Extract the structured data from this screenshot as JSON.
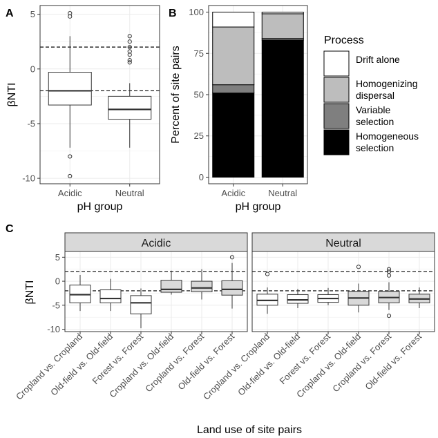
{
  "panel_labels": {
    "a": "A",
    "b": "B",
    "c": "C"
  },
  "colors": {
    "grid": "#ebebeb",
    "frame": "#333333",
    "strip_fill": "#d9d9d9",
    "tick_text": "#4d4d4d",
    "box_fill_light": "#d9d9d9",
    "box_fill_white": "#ffffff",
    "drift_alone": "#ffffff",
    "homogenizing_dispersal": "#bdbdbd",
    "variable_selection": "#7f7f7f",
    "homogeneous_selection": "#000000"
  },
  "chart_data": [
    {
      "panel": "A",
      "type": "box",
      "xlabel": "pH group",
      "ylabel": "βNTI",
      "ylim": [
        -10.5,
        5.8
      ],
      "yticks": [
        5,
        0,
        -5,
        -10
      ],
      "ytick_labels": [
        "5",
        "0",
        "-5",
        "-10"
      ],
      "reference_lines": [
        2,
        -2
      ],
      "categories": [
        "Acidic",
        "Neutral"
      ],
      "boxes": [
        {
          "q1": -3.3,
          "median": -2.0,
          "q3": -0.3,
          "whisker_low": -7.2,
          "whisker_high": 3.0,
          "outliers": [
            5.1,
            4.8,
            -8.0,
            -9.8
          ]
        },
        {
          "q1": -4.6,
          "median": -3.7,
          "q3": -2.5,
          "whisker_low": -7.2,
          "whisker_high": -1.3,
          "outliers": [
            3.0,
            2.5,
            2.0,
            1.6,
            1.3,
            0.8,
            0.6
          ]
        }
      ]
    },
    {
      "panel": "B",
      "type": "bar",
      "stacked": true,
      "xlabel": "pH group",
      "ylabel": "Percent of site pairs",
      "ylim": [
        -4,
        104
      ],
      "yticks": [
        100,
        75,
        50,
        25,
        0
      ],
      "ytick_labels": [
        "100",
        "75",
        "50",
        "25",
        "0"
      ],
      "categories": [
        "Acidic",
        "Neutral"
      ],
      "legend_title": "Process",
      "legend_position": "right",
      "series": [
        {
          "key": "homogeneous_selection",
          "name": "Homogeneous selection",
          "legend_lines": [
            "Homogeneous",
            "selection"
          ],
          "values": [
            51,
            83
          ]
        },
        {
          "key": "variable_selection",
          "name": "Variable selection",
          "legend_lines": [
            "Variable",
            "selection"
          ],
          "values": [
            5,
            1
          ]
        },
        {
          "key": "homogenizing_dispersal",
          "name": "Homogenizing dispersal",
          "legend_lines": [
            "Homogenizing",
            "dispersal"
          ],
          "values": [
            35,
            15
          ]
        },
        {
          "key": "drift_alone",
          "name": "Drift alone",
          "legend_lines": [
            "Drift alone"
          ],
          "values": [
            9,
            1
          ]
        }
      ],
      "legend_order": [
        "drift_alone",
        "homogenizing_dispersal",
        "variable_selection",
        "homogeneous_selection"
      ]
    },
    {
      "panel": "C",
      "type": "box",
      "xlabel": "Land use of site pairs",
      "ylabel": "βNTI",
      "ylim": [
        -10.5,
        6.2
      ],
      "yticks": [
        5,
        0,
        -5,
        -10
      ],
      "ytick_labels": [
        "5",
        "0",
        "-5",
        "-10"
      ],
      "reference_lines": [
        2,
        -2
      ],
      "facets": [
        {
          "title": "Acidic",
          "categories": [
            "Cropland vs. Cropland",
            "Old-field vs. Old-field",
            "Forest vs. Forest",
            "Cropland vs. Old-field",
            "Cropland vs. Forest",
            "Old-field vs. Forest"
          ],
          "boxes": [
            {
              "q1": -4.5,
              "median": -2.8,
              "q3": -0.8,
              "whisker_low": -6.2,
              "whisker_high": 1.3,
              "outliers": [],
              "fill": "white"
            },
            {
              "q1": -4.5,
              "median": -3.6,
              "q3": -1.8,
              "whisker_low": -6.2,
              "whisker_high": 0.5,
              "outliers": [],
              "fill": "white"
            },
            {
              "q1": -6.8,
              "median": -4.5,
              "q3": -3.0,
              "whisker_low": -9.8,
              "whisker_high": -1.5,
              "outliers": [],
              "fill": "white"
            },
            {
              "q1": -2.3,
              "median": -1.7,
              "q3": 0.2,
              "whisker_low": -2.8,
              "whisker_high": 2.2,
              "outliers": [],
              "fill": "light"
            },
            {
              "q1": -2.2,
              "median": -1.4,
              "q3": 0.0,
              "whisker_low": -3.8,
              "whisker_high": 2.5,
              "outliers": [],
              "fill": "light"
            },
            {
              "q1": -2.9,
              "median": -1.7,
              "q3": 0.1,
              "whisker_low": -5.7,
              "whisker_high": 3.8,
              "outliers": [
                5.0
              ],
              "fill": "light"
            }
          ]
        },
        {
          "title": "Neutral",
          "categories": [
            "Cropland vs. Cropland",
            "Old-field vs. Old-field",
            "Forest vs. Forest",
            "Cropland vs. Old-field",
            "Cropland vs. Forest",
            "Old-field vs. Forest"
          ],
          "boxes": [
            {
              "q1": -5.0,
              "median": -4.0,
              "q3": -2.7,
              "whisker_low": -6.8,
              "whisker_high": -1.3,
              "outliers": [
                1.5
              ],
              "fill": "white"
            },
            {
              "q1": -4.6,
              "median": -3.9,
              "q3": -2.8,
              "whisker_low": -5.6,
              "whisker_high": -1.6,
              "outliers": [],
              "fill": "white"
            },
            {
              "q1": -4.4,
              "median": -3.6,
              "q3": -2.8,
              "whisker_low": -5.0,
              "whisker_high": -1.4,
              "outliers": [],
              "fill": "white"
            },
            {
              "q1": -5.0,
              "median": -3.5,
              "q3": -2.1,
              "whisker_low": -6.5,
              "whisker_high": -0.5,
              "outliers": [
                3.0
              ],
              "fill": "light"
            },
            {
              "q1": -4.5,
              "median": -3.4,
              "q3": -2.1,
              "whisker_low": -6.0,
              "whisker_high": -0.2,
              "outliers": [
                2.5,
                2.0,
                1.2,
                -7.2
              ],
              "fill": "light"
            },
            {
              "q1": -4.5,
              "median": -3.7,
              "q3": -2.7,
              "whisker_low": -5.6,
              "whisker_high": -1.3,
              "outliers": [],
              "fill": "light"
            }
          ]
        }
      ]
    }
  ]
}
